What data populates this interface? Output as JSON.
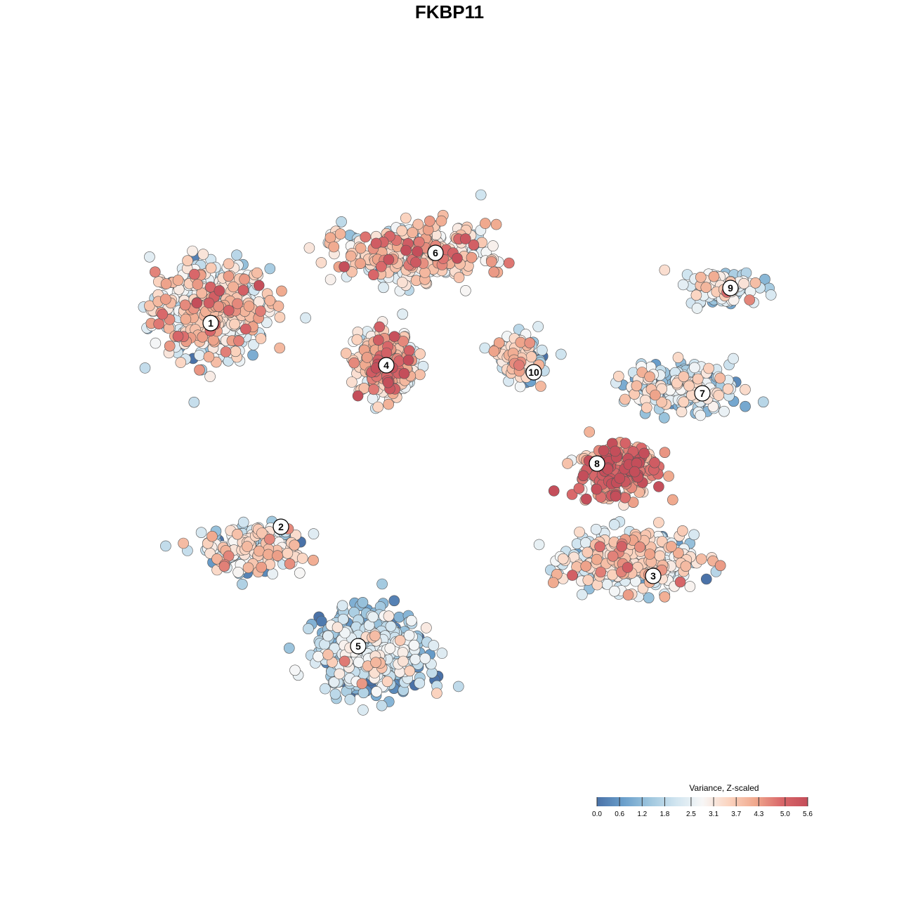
{
  "chart_data": {
    "type": "scatter",
    "title": "FKBP11",
    "xlabel": "",
    "ylabel": "",
    "grid": false,
    "axes_visible": false,
    "color_scale": {
      "title": "Variance, Z-scaled",
      "min": 0.0,
      "max": 5.6,
      "ticks": [
        "0.0",
        "0.6",
        "1.2",
        "1.8",
        "2.5",
        "3.1",
        "3.7",
        "4.3",
        "5.0",
        "5.6"
      ],
      "tick_values": [
        0.0,
        0.6,
        1.2,
        1.8,
        2.5,
        3.1,
        3.7,
        4.3,
        5.0,
        5.6
      ],
      "colors": [
        "#4a72a8",
        "#6a9fcb",
        "#9ec6de",
        "#d1e5f0",
        "#f7f7f7",
        "#fbd4c0",
        "#f0a98e",
        "#d9686a",
        "#c44e5a"
      ],
      "placement": "bottom-right"
    },
    "clusters": [
      {
        "label": "1",
        "x": -34,
        "y": 18,
        "mean_value": 2.8
      },
      {
        "label": "2",
        "x": -24,
        "y": -11,
        "mean_value": 2.4
      },
      {
        "label": "3",
        "x": 29,
        "y": -18,
        "mean_value": 2.5
      },
      {
        "label": "4",
        "x": -9,
        "y": 12,
        "mean_value": 3.4
      },
      {
        "label": "5",
        "x": -13,
        "y": -28,
        "mean_value": 1.4
      },
      {
        "label": "6",
        "x": -2,
        "y": 28,
        "mean_value": 3.0
      },
      {
        "label": "7",
        "x": 36,
        "y": 8,
        "mean_value": 2.0
      },
      {
        "label": "8",
        "x": 21,
        "y": -2,
        "mean_value": 4.3
      },
      {
        "label": "9",
        "x": 40,
        "y": 23,
        "mean_value": 2.4
      },
      {
        "label": "10",
        "x": 12,
        "y": 11,
        "mean_value": 2.4
      }
    ]
  }
}
